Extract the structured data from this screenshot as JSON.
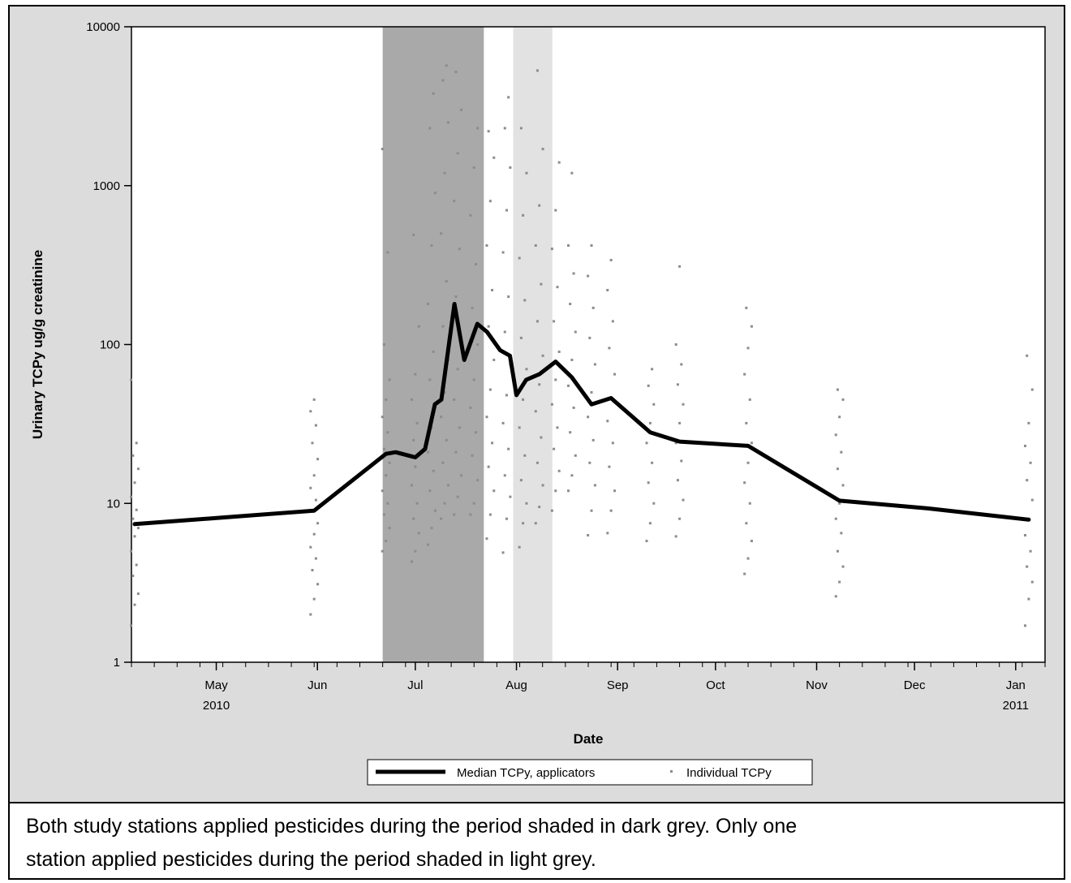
{
  "chart_data": {
    "type": "line",
    "xlabel": "Date",
    "ylabel": "Urinary TCPy ug/g creatinine",
    "y_scale": "log",
    "ylim": [
      1,
      10000
    ],
    "xlim": [
      "2010-04-05",
      "2011-01-10"
    ],
    "y_ticks": [
      "1",
      "10",
      "100",
      "1000",
      "10000"
    ],
    "x_tick_labels": [
      {
        "date": "2010-05-01",
        "month": "May",
        "year": "2010"
      },
      {
        "date": "2010-06-01",
        "month": "Jun",
        "year": ""
      },
      {
        "date": "2010-07-01",
        "month": "Jul",
        "year": ""
      },
      {
        "date": "2010-08-01",
        "month": "Aug",
        "year": ""
      },
      {
        "date": "2010-09-01",
        "month": "Sep",
        "year": ""
      },
      {
        "date": "2010-10-01",
        "month": "Oct",
        "year": ""
      },
      {
        "date": "2010-11-01",
        "month": "Nov",
        "year": ""
      },
      {
        "date": "2010-12-01",
        "month": "Dec",
        "year": ""
      },
      {
        "date": "2011-01-01",
        "month": "Jan",
        "year": "2011"
      }
    ],
    "shaded_periods": [
      {
        "start": "2010-06-21",
        "end": "2010-07-22",
        "color": "#a9a9a9"
      },
      {
        "start": "2010-07-31",
        "end": "2010-08-12",
        "color": "#e2e2e2"
      }
    ],
    "series": [
      {
        "name": "Median TCPy, applicators",
        "color": "#000000",
        "points": [
          [
            "2010-04-06",
            7.4
          ],
          [
            "2010-05-31",
            9.0
          ],
          [
            "2010-06-22",
            20.5
          ],
          [
            "2010-06-25",
            21.0
          ],
          [
            "2010-07-01",
            19.5
          ],
          [
            "2010-07-04",
            22.0
          ],
          [
            "2010-07-07",
            42.0
          ],
          [
            "2010-07-09",
            45.0
          ],
          [
            "2010-07-13",
            180.0
          ],
          [
            "2010-07-16",
            80.0
          ],
          [
            "2010-07-20",
            135.0
          ],
          [
            "2010-07-23",
            120.0
          ],
          [
            "2010-07-27",
            92.0
          ],
          [
            "2010-07-30",
            85.0
          ],
          [
            "2010-08-01",
            48.0
          ],
          [
            "2010-08-04",
            60.0
          ],
          [
            "2010-08-08",
            65.0
          ],
          [
            "2010-08-13",
            78.0
          ],
          [
            "2010-08-18",
            62.0
          ],
          [
            "2010-08-24",
            42.0
          ],
          [
            "2010-08-30",
            46.0
          ],
          [
            "2010-09-11",
            28.0
          ],
          [
            "2010-09-20",
            24.5
          ],
          [
            "2010-10-11",
            23.0
          ],
          [
            "2010-11-08",
            10.4
          ],
          [
            "2010-12-05",
            9.3
          ],
          [
            "2011-01-05",
            7.9
          ]
        ]
      },
      {
        "name": "Individual TCPy",
        "color": "#8c8c8c",
        "scatter_groups": [
          {
            "date": "2010-04-06",
            "values": [
              1.7,
              2.3,
              2.7,
              3.5,
              4.1,
              5.0,
              6.2,
              7.0,
              8.0,
              9.1,
              11.0,
              13.5,
              16.5,
              20.0,
              24.0,
              60.0
            ]
          },
          {
            "date": "2010-05-31",
            "values": [
              2.0,
              2.5,
              3.1,
              3.8,
              4.5,
              5.3,
              6.4,
              7.5,
              9.0,
              10.5,
              12.5,
              15.0,
              19.0,
              24.0,
              31.0,
              38.0,
              45.0
            ]
          },
          {
            "date": "2010-06-22",
            "values": [
              5.0,
              5.8,
              7.0,
              8.5,
              10.0,
              12.0,
              15.0,
              18.0,
              22.0,
              28.0,
              35.0,
              45.0,
              60.0,
              100.0,
              380.0,
              1700.0
            ]
          },
          {
            "date": "2010-07-01",
            "values": [
              4.3,
              5.0,
              6.5,
              8.0,
              10.0,
              13.0,
              17.0,
              20.0,
              25.0,
              32.0,
              45.0,
              65.0,
              130.0,
              490.0
            ]
          },
          {
            "date": "2010-07-06",
            "values": [
              5.5,
              7.0,
              9.0,
              12.0,
              16.0,
              21.0,
              30.0,
              42.0,
              60.0,
              90.0,
              180.0,
              420.0,
              900.0,
              2300.0,
              3800.0
            ]
          },
          {
            "date": "2010-07-10",
            "values": [
              8.0,
              10.0,
              13.0,
              18.0,
              25.0,
              35.0,
              50.0,
              80.0,
              130.0,
              250.0,
              500.0,
              1200.0,
              2500.0,
              4600.0,
              5700.0
            ]
          },
          {
            "date": "2010-07-14",
            "values": [
              8.5,
              11.0,
              15.0,
              21.0,
              30.0,
              45.0,
              70.0,
              110.0,
              200.0,
              400.0,
              800.0,
              1600.0,
              3000.0,
              5200.0
            ]
          },
          {
            "date": "2010-07-19",
            "values": [
              8.5,
              10.0,
              14.0,
              20.0,
              28.0,
              40.0,
              60.0,
              100.0,
              170.0,
              320.0,
              650.0,
              1300.0,
              2300.0
            ]
          },
          {
            "date": "2010-07-24",
            "values": [
              6.0,
              8.5,
              12.0,
              17.0,
              24.0,
              35.0,
              52.0,
              80.0,
              130.0,
              220.0,
              420.0,
              800.0,
              1500.0,
              2200.0
            ]
          },
          {
            "date": "2010-07-29",
            "values": [
              4.9,
              8.0,
              11.0,
              15.0,
              22.0,
              32.0,
              48.0,
              75.0,
              120.0,
              200.0,
              380.0,
              700.0,
              1300.0,
              2300.0,
              3600.0
            ]
          },
          {
            "date": "2010-08-03",
            "values": [
              5.3,
              7.5,
              10.0,
              14.0,
              20.0,
              30.0,
              45.0,
              70.0,
              110.0,
              190.0,
              350.0,
              650.0,
              1200.0,
              2300.0
            ]
          },
          {
            "date": "2010-08-08",
            "values": [
              7.5,
              9.5,
              13.0,
              18.0,
              26.0,
              38.0,
              56.0,
              85.0,
              140.0,
              240.0,
              420.0,
              750.0,
              1700.0,
              5300.0
            ]
          },
          {
            "date": "2010-08-13",
            "values": [
              9.0,
              12.0,
              16.0,
              22.0,
              30.0,
              42.0,
              60.0,
              90.0,
              140.0,
              230.0,
              400.0,
              700.0,
              1400.0
            ]
          },
          {
            "date": "2010-08-18",
            "values": [
              12.0,
              15.0,
              20.0,
              28.0,
              40.0,
              55.0,
              80.0,
              120.0,
              180.0,
              280.0,
              420.0,
              1200.0
            ]
          },
          {
            "date": "2010-08-24",
            "values": [
              6.3,
              9.0,
              13.0,
              18.0,
              25.0,
              35.0,
              50.0,
              75.0,
              110.0,
              170.0,
              270.0,
              420.0
            ]
          },
          {
            "date": "2010-08-30",
            "values": [
              6.5,
              9.0,
              12.0,
              17.0,
              24.0,
              33.0,
              46.0,
              65.0,
              95.0,
              140.0,
              220.0,
              340.0
            ]
          },
          {
            "date": "2010-09-11",
            "values": [
              5.8,
              7.5,
              10.0,
              13.5,
              18.0,
              24.0,
              32.0,
              42.0,
              55.0,
              70.0
            ]
          },
          {
            "date": "2010-09-20",
            "values": [
              6.2,
              8.0,
              10.5,
              14.0,
              18.5,
              24.0,
              32.0,
              42.0,
              56.0,
              75.0,
              100.0,
              310.0
            ]
          },
          {
            "date": "2010-10-11",
            "values": [
              3.6,
              4.5,
              5.8,
              7.5,
              10.0,
              13.5,
              18.0,
              24.0,
              32.0,
              45.0,
              65.0,
              95.0,
              130.0,
              170.0
            ]
          },
          {
            "date": "2010-11-08",
            "values": [
              2.6,
              3.2,
              4.0,
              5.0,
              6.5,
              8.0,
              10.0,
              13.0,
              16.5,
              21.0,
              27.0,
              35.0,
              45.0,
              52.0
            ]
          },
          {
            "date": "2011-01-05",
            "values": [
              1.7,
              2.5,
              3.2,
              4.0,
              5.0,
              6.3,
              8.0,
              10.5,
              14.0,
              18.0,
              23.0,
              32.0,
              52.0,
              85.0
            ]
          }
        ]
      }
    ],
    "legend": {
      "position": "bottom-center",
      "items": [
        {
          "label": "Median TCPy, applicators",
          "symbol": "line"
        },
        {
          "label": "Individual TCPy",
          "symbol": "dot"
        }
      ]
    },
    "colors": {
      "background": "#dcdcdc",
      "plot_background": "#ffffff",
      "dark_shade": "#a9a9a9",
      "light_shade": "#e2e2e2",
      "median_line": "#000000",
      "points": "#8c8c8c"
    }
  },
  "caption": {
    "line1": "Both study stations applied pesticides during the period shaded in dark grey. Only one",
    "line2": "station applied pesticides during the period shaded in light grey."
  }
}
